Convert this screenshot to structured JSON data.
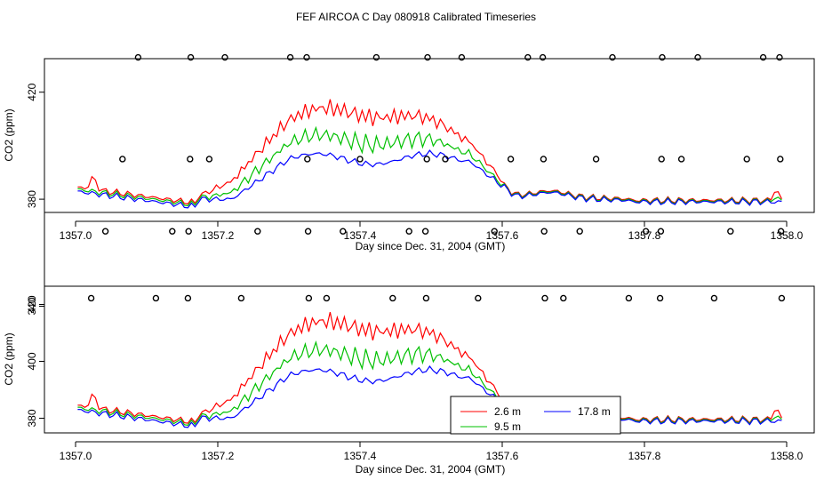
{
  "chart_data": [
    {
      "type": "line",
      "title": "FEF AIRCOA C  Day 080918  Calibrated Timeseries",
      "xlabel": "Day since Dec. 31, 2004 (GMT)",
      "ylabel": "CO2 (ppm)",
      "xlim": [
        1357.0,
        1358.0
      ],
      "ylim": [
        340,
        440
      ],
      "xticks": [
        "1357.0",
        "1357.2",
        "1357.4",
        "1357.6",
        "1357.8",
        "1358.0"
      ],
      "xtick_values": [
        1357.0,
        1357.2,
        1357.4,
        1357.6,
        1357.8,
        1358.0
      ],
      "yticks": [
        "340",
        "380",
        "420"
      ],
      "ytick_values": [
        340,
        380,
        420
      ],
      "calibration_markers": [
        {
          "x": 1357.022,
          "y": 343
        },
        {
          "x": 1357.042,
          "y": 368
        },
        {
          "x": 1357.066,
          "y": 395
        },
        {
          "x": 1357.088,
          "y": 433
        },
        {
          "x": 1357.113,
          "y": 343
        },
        {
          "x": 1357.136,
          "y": 368
        },
        {
          "x": 1357.158,
          "y": 343
        },
        {
          "x": 1357.159,
          "y": 368
        },
        {
          "x": 1357.161,
          "y": 395
        },
        {
          "x": 1357.162,
          "y": 433
        },
        {
          "x": 1357.188,
          "y": 395
        },
        {
          "x": 1357.21,
          "y": 433
        },
        {
          "x": 1357.233,
          "y": 343
        },
        {
          "x": 1357.256,
          "y": 368
        },
        {
          "x": 1357.302,
          "y": 433
        },
        {
          "x": 1357.325,
          "y": 433
        },
        {
          "x": 1357.326,
          "y": 395
        },
        {
          "x": 1357.327,
          "y": 368
        },
        {
          "x": 1357.328,
          "y": 343
        },
        {
          "x": 1357.353,
          "y": 343
        },
        {
          "x": 1357.376,
          "y": 368
        },
        {
          "x": 1357.4,
          "y": 395
        },
        {
          "x": 1357.423,
          "y": 433
        },
        {
          "x": 1357.446,
          "y": 343
        },
        {
          "x": 1357.469,
          "y": 368
        },
        {
          "x": 1357.492,
          "y": 368
        },
        {
          "x": 1357.493,
          "y": 343
        },
        {
          "x": 1357.494,
          "y": 395
        },
        {
          "x": 1357.495,
          "y": 433
        },
        {
          "x": 1357.52,
          "y": 395
        },
        {
          "x": 1357.543,
          "y": 433
        },
        {
          "x": 1357.566,
          "y": 343
        },
        {
          "x": 1357.589,
          "y": 368
        },
        {
          "x": 1357.612,
          "y": 395
        },
        {
          "x": 1357.636,
          "y": 433
        },
        {
          "x": 1357.657,
          "y": 433
        },
        {
          "x": 1357.658,
          "y": 395
        },
        {
          "x": 1357.659,
          "y": 368
        },
        {
          "x": 1357.66,
          "y": 343
        },
        {
          "x": 1357.686,
          "y": 343
        },
        {
          "x": 1357.709,
          "y": 368
        },
        {
          "x": 1357.732,
          "y": 395
        },
        {
          "x": 1357.755,
          "y": 433
        },
        {
          "x": 1357.778,
          "y": 343
        },
        {
          "x": 1357.802,
          "y": 368
        },
        {
          "x": 1357.822,
          "y": 343
        },
        {
          "x": 1357.823,
          "y": 368
        },
        {
          "x": 1357.824,
          "y": 395
        },
        {
          "x": 1357.825,
          "y": 433
        },
        {
          "x": 1357.852,
          "y": 395
        },
        {
          "x": 1357.875,
          "y": 433
        },
        {
          "x": 1357.898,
          "y": 343
        },
        {
          "x": 1357.921,
          "y": 368
        },
        {
          "x": 1357.944,
          "y": 395
        },
        {
          "x": 1357.967,
          "y": 433
        },
        {
          "x": 1357.99,
          "y": 433
        },
        {
          "x": 1357.991,
          "y": 395
        },
        {
          "x": 1357.992,
          "y": 368
        },
        {
          "x": 1357.993,
          "y": 343
        }
      ]
    },
    {
      "type": "line",
      "title": "",
      "xlabel": "Day since Dec. 31, 2004 (GMT)",
      "ylabel": "CO2 (ppm)",
      "xlim": [
        1357.0,
        1358.0
      ],
      "ylim": [
        376,
        428
      ],
      "xticks": [
        "1357.0",
        "1357.2",
        "1357.4",
        "1357.6",
        "1357.8",
        "1358.0"
      ],
      "xtick_values": [
        1357.0,
        1357.2,
        1357.4,
        1357.6,
        1357.8,
        1358.0
      ],
      "yticks": [
        "380",
        "400",
        "420"
      ],
      "ytick_values": [
        380,
        400,
        420
      ],
      "legend": {
        "placement": "bottom-center",
        "entries": [
          "2.6 m",
          "9.5 m",
          "17.8 m"
        ]
      }
    }
  ],
  "series_defs": [
    {
      "name": "2.6 m",
      "color": "#ff0000"
    },
    {
      "name": "9.5 m",
      "color": "#00c000"
    },
    {
      "name": "17.8 m",
      "color": "#0000ff"
    }
  ]
}
